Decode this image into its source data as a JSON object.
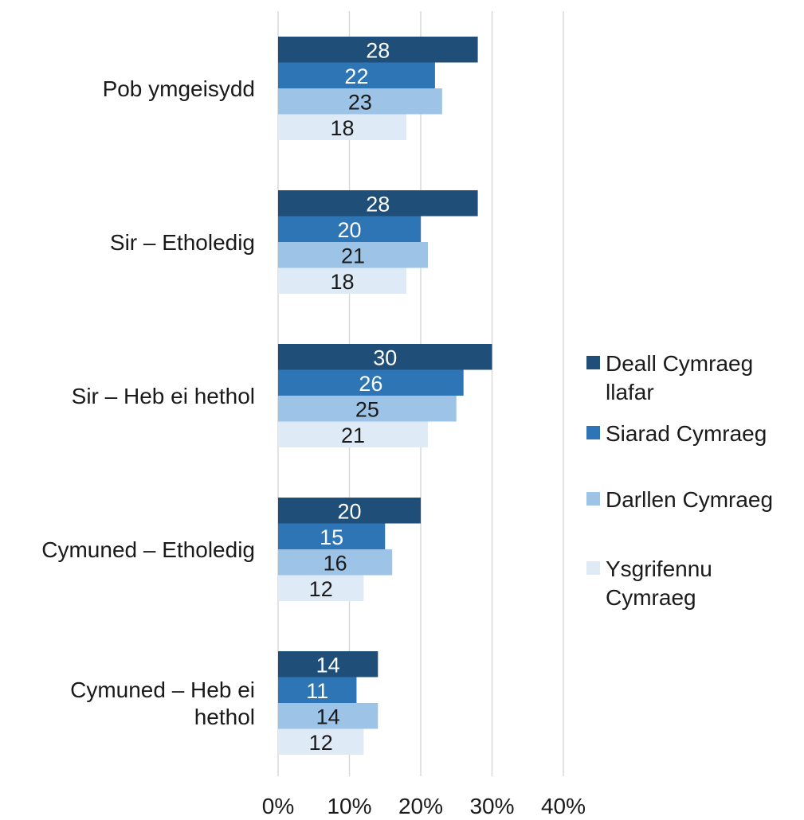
{
  "chart_data": {
    "type": "bar",
    "orientation": "horizontal",
    "title": "",
    "xlabel": "",
    "ylabel": "",
    "categories": [
      [
        "Pob ymgeisydd"
      ],
      [
        "Sir – Etholedig"
      ],
      [
        "Sir – Heb ei hethol"
      ],
      [
        "Cymuned – Etholedig"
      ],
      [
        "Cymuned – Heb ei",
        "hethol"
      ]
    ],
    "series": [
      {
        "name": [
          "Deall Cymraeg",
          "llafar"
        ],
        "color": "#1f4e79",
        "label_color": "#ffffff",
        "values": [
          28,
          28,
          30,
          20,
          14
        ]
      },
      {
        "name": [
          "Siarad Cymraeg"
        ],
        "color": "#2e75b6",
        "label_color": "#ffffff",
        "values": [
          22,
          20,
          26,
          15,
          11
        ]
      },
      {
        "name": [
          "Darllen Cymraeg"
        ],
        "color": "#9dc3e6",
        "label_color": "#1a1a1a",
        "values": [
          23,
          21,
          25,
          16,
          14
        ]
      },
      {
        "name": [
          "Ysgrifennu",
          "Cymraeg"
        ],
        "color": "#deebf7",
        "label_color": "#1a1a1a",
        "values": [
          18,
          18,
          21,
          12,
          12
        ]
      }
    ],
    "xlim": [
      0,
      40
    ],
    "xticks": [
      "0%",
      "10%",
      "20%",
      "30%",
      "40%"
    ],
    "grid": true,
    "legend_position": "right"
  }
}
